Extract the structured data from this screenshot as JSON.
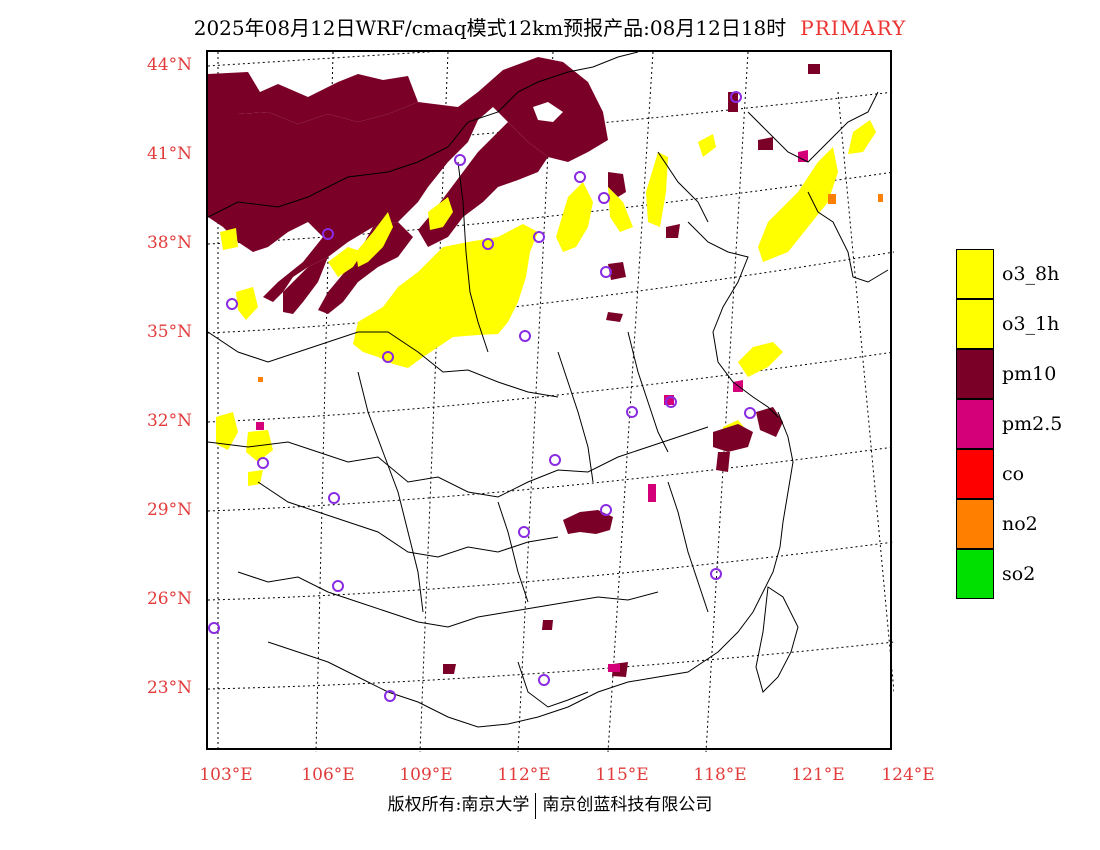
{
  "header": {
    "title": "2025年08月12日WRF/cmaq模式12km预报产品:08月12日18时",
    "tag": "PRIMARY",
    "tag_color": "#ee3333"
  },
  "map": {
    "lat_labels": [
      "44°N",
      "41°N",
      "38°N",
      "35°N",
      "32°N",
      "29°N",
      "26°N",
      "23°N"
    ],
    "lon_labels": [
      "103°E",
      "106°E",
      "109°E",
      "112°E",
      "115°E",
      "118°E",
      "121°E",
      "124°E"
    ],
    "label_color": "#e23b3b",
    "station_marker_color": "#8a2be2",
    "layers": [
      "o3_8h",
      "o3_1h",
      "pm10",
      "pm2.5"
    ]
  },
  "legend": {
    "items": [
      {
        "label": "o3_8h",
        "color": "#ffff00"
      },
      {
        "label": "o3_1h",
        "color": "#ffff00"
      },
      {
        "label": "pm10",
        "color": "#7a0027"
      },
      {
        "label": "pm2.5",
        "color": "#d4007a"
      },
      {
        "label": "co",
        "color": "#ff0000"
      },
      {
        "label": "no2",
        "color": "#ff7f00"
      },
      {
        "label": "so2",
        "color": "#00e000"
      }
    ]
  },
  "footer": {
    "left": "版权所有:南京大学",
    "right": "南京创蓝科技有限公司"
  }
}
